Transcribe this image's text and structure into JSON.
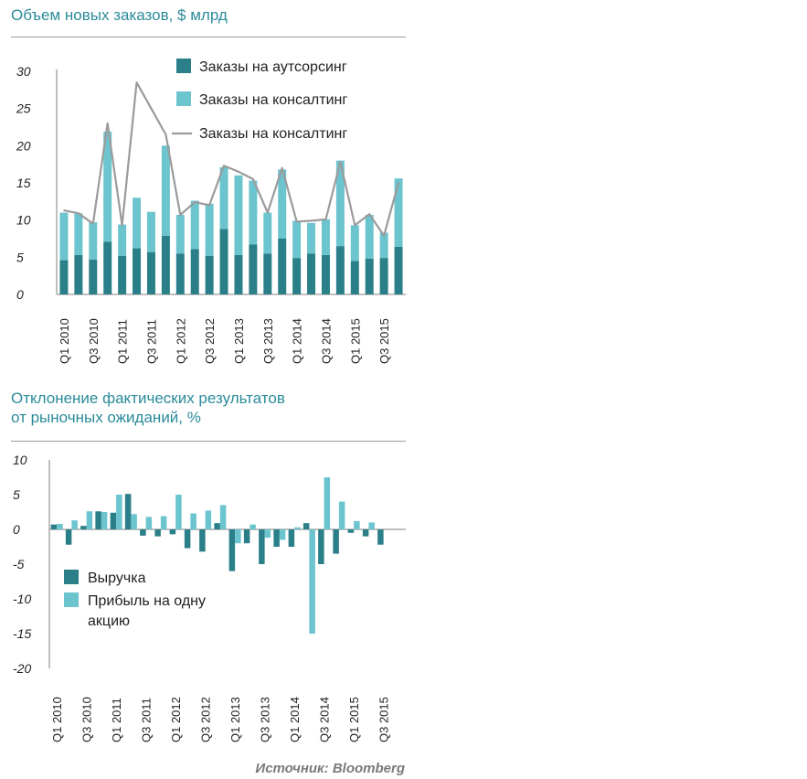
{
  "chart1_title": "Объем новых заказов, $ млрд",
  "chart2_title_line1": "Отклонение фактических результатов",
  "chart2_title_line2": "от рыночных ожиданий, %",
  "source": "Источник: Bloomberg",
  "colors": {
    "dark": "#2a7f88",
    "light": "#6cc4cf",
    "line": "#9b9b9b",
    "title": "#2b8b9a"
  },
  "chart_data": [
    {
      "type": "bar",
      "stacked": true,
      "title": "Объем новых заказов, $ млрд",
      "categories": [
        "Q1 2010",
        "Q2 2010",
        "Q3 2010",
        "Q4 2010",
        "Q1 2011",
        "Q2 2011",
        "Q3 2011",
        "Q4 2011",
        "Q1 2012",
        "Q2 2012",
        "Q3 2012",
        "Q4 2012",
        "Q1 2013",
        "Q2 2013",
        "Q3 2013",
        "Q4 2013",
        "Q1 2014",
        "Q2 2014",
        "Q3 2014",
        "Q4 2014",
        "Q1 2015",
        "Q2 2015",
        "Q3 2015",
        "Q4 2015"
      ],
      "tick_labels": [
        "Q1 2010",
        "Q3 2010",
        "Q1 2011",
        "Q3 2011",
        "Q1 2012",
        "Q3 2012",
        "Q1 2013",
        "Q3 2013",
        "Q1 2014",
        "Q3 2014",
        "Q1 2015",
        "Q3 2015"
      ],
      "series": [
        {
          "name": "Заказы на аутсорсинг",
          "kind": "bar",
          "values": [
            4.6,
            5.3,
            4.7,
            7.1,
            5.2,
            6.2,
            5.7,
            7.9,
            5.5,
            6.1,
            5.2,
            8.8,
            5.3,
            6.7,
            5.5,
            7.5,
            4.9,
            5.5,
            5.3,
            6.5,
            4.5,
            4.8,
            4.9,
            6.4
          ]
        },
        {
          "name": "Заказы на консалтинг",
          "kind": "bar",
          "values": [
            6.4,
            5.6,
            5.0,
            14.8,
            4.2,
            6.8,
            5.4,
            12.1,
            5.2,
            6.5,
            7.0,
            8.3,
            10.7,
            8.6,
            5.5,
            9.3,
            5.0,
            4.1,
            4.8,
            11.5,
            4.8,
            5.9,
            3.4,
            9.2
          ]
        },
        {
          "name": "Заказы на консалтинг",
          "kind": "line",
          "values": [
            11.3,
            10.9,
            9.5,
            23.0,
            9.3,
            28.5,
            25.0,
            21.5,
            10.7,
            12.4,
            12.0,
            17.3,
            16.5,
            15.5,
            11.0,
            17.0,
            9.8,
            9.9,
            10.1,
            17.8,
            9.3,
            10.8,
            7.9,
            15.0
          ]
        }
      ],
      "y_ticks": [
        "0",
        "5",
        "10",
        "15",
        "20",
        "25",
        "30"
      ],
      "y_tick_values": [
        0,
        5,
        10,
        15,
        20,
        25,
        30
      ],
      "ylim": [
        0,
        30
      ],
      "legend_position": "top-right"
    },
    {
      "type": "bar",
      "title": "Отклонение фактических результатов от рыночных ожиданий, %",
      "categories": [
        "Q1 2010",
        "Q2 2010",
        "Q3 2010",
        "Q4 2010",
        "Q1 2011",
        "Q2 2011",
        "Q3 2011",
        "Q4 2011",
        "Q1 2012",
        "Q2 2012",
        "Q3 2012",
        "Q4 2012",
        "Q1 2013",
        "Q2 2013",
        "Q3 2013",
        "Q4 2013",
        "Q1 2014",
        "Q2 2014",
        "Q3 2014",
        "Q4 2014",
        "Q1 2015",
        "Q2 2015",
        "Q3 2015",
        "Q4 2015"
      ],
      "tick_labels": [
        "Q1 2010",
        "Q3 2010",
        "Q1 2011",
        "Q3 2011",
        "Q1 2012",
        "Q3 2012",
        "Q1 2013",
        "Q3 2013",
        "Q1 2014",
        "Q3 2014",
        "Q1 2015",
        "Q3 2015"
      ],
      "series": [
        {
          "name": "Выручка",
          "values": [
            0.7,
            -2.2,
            0.5,
            2.6,
            2.4,
            5.1,
            -0.9,
            -1.0,
            -0.7,
            -2.7,
            -3.2,
            0.9,
            -6.0,
            -2.0,
            -5.0,
            -2.5,
            -2.5,
            0.9,
            -5.0,
            -3.5,
            -0.5,
            -1.0,
            -2.2,
            null
          ]
        },
        {
          "name": "Прибыль на одну акцию",
          "values": [
            0.8,
            1.3,
            2.6,
            2.5,
            5.0,
            2.2,
            1.8,
            1.9,
            5.0,
            2.3,
            2.7,
            3.5,
            -2.0,
            0.7,
            -1.2,
            -1.5,
            0.3,
            -15.0,
            7.5,
            4.0,
            1.2,
            1.0,
            null,
            null
          ]
        }
      ],
      "y_ticks": [
        "10",
        "5",
        "0",
        "-5",
        "-10",
        "-15",
        "-20"
      ],
      "y_tick_values": [
        10,
        5,
        0,
        -5,
        -10,
        -15,
        -20
      ],
      "ylim": [
        -20,
        10
      ],
      "legend_position": "bottom-left"
    }
  ]
}
